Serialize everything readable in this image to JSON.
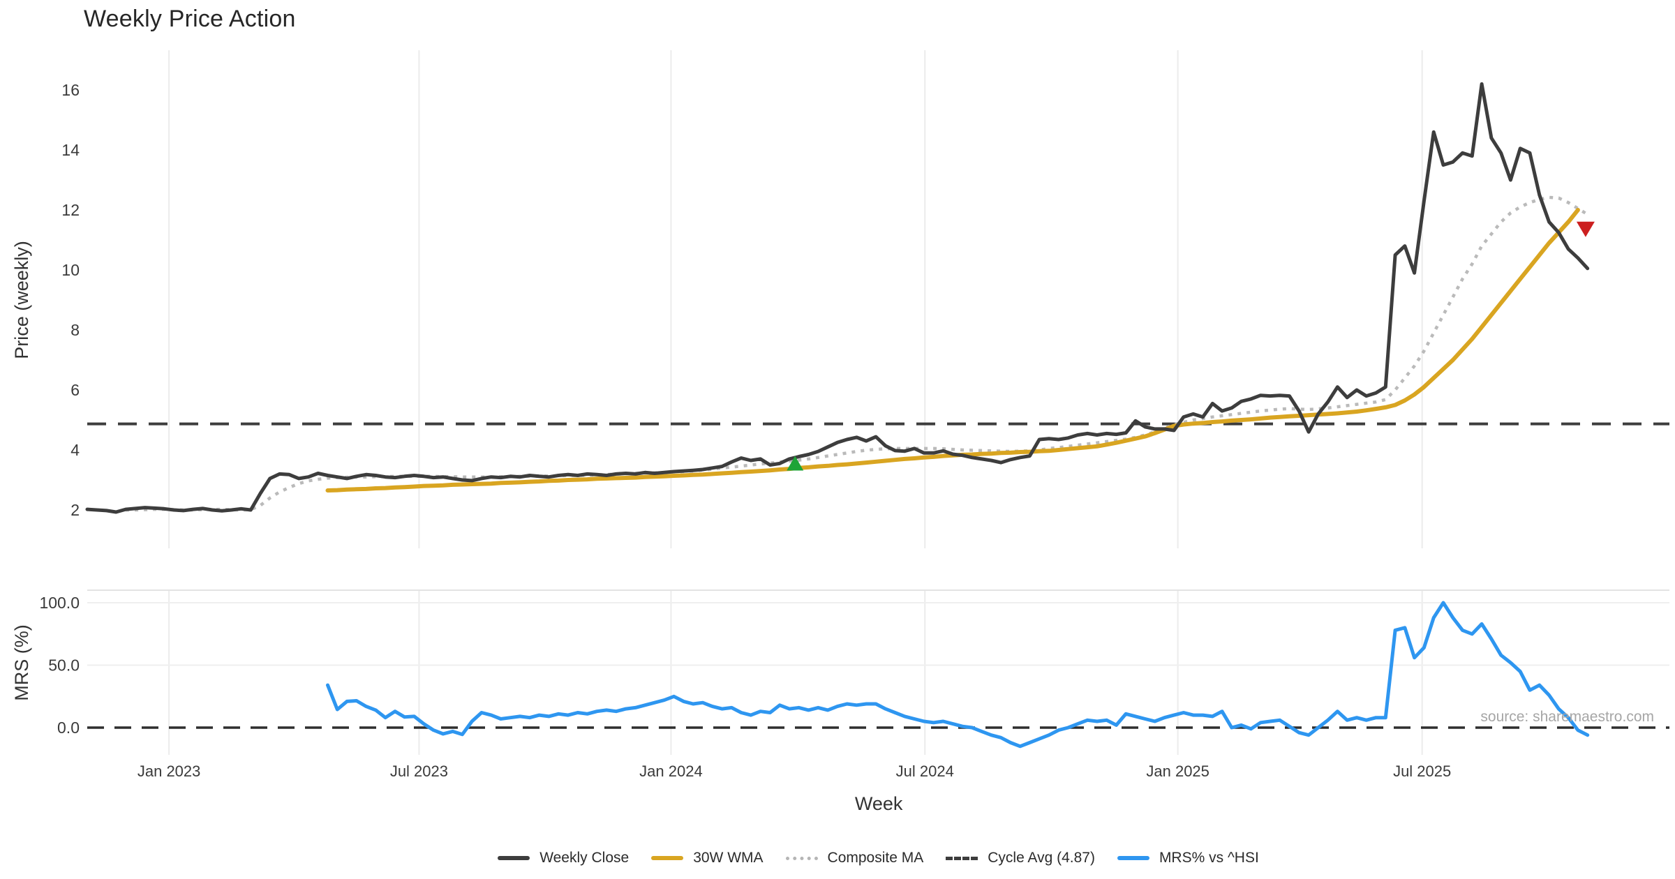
{
  "title": "Weekly Price Action",
  "source_text": "source: sharemaestro.com",
  "colors": {
    "weekly_close": "#3d3d3d",
    "wma_30w": "#d9a521",
    "composite_ma": "#bababa",
    "cycle_avg": "#3d3d3d",
    "mrs_line": "#2e96f0",
    "buy_marker": "#1ea437",
    "sell_marker": "#cc1f1f",
    "gridline": "#ececec",
    "watermark": "#a6a6a6"
  },
  "chart_data": {
    "type": "line",
    "title": "Weekly Price Action",
    "x_axis": {
      "label": "Week",
      "ticks": [
        {
          "label": "Jan 2023",
          "week": 8.5
        },
        {
          "label": "Jul 2023",
          "week": 34.5
        },
        {
          "label": "Jan 2024",
          "week": 60.7
        },
        {
          "label": "Jul 2024",
          "week": 87.1
        },
        {
          "label": "Jan 2025",
          "week": 113.4
        },
        {
          "label": "Jul 2025",
          "week": 138.8
        }
      ],
      "start_week_date": "Nov 2022",
      "total_weeks": 157
    },
    "panels": [
      {
        "id": "price",
        "ylabel": "Price (weekly)",
        "ylim": [
          1.2,
          16.8
        ],
        "yticks": [
          2,
          4,
          6,
          8,
          10,
          12,
          14,
          16
        ],
        "grid": "vertical-only",
        "series": [
          {
            "name": "Weekly Close",
            "style": "solid",
            "color": "#3d3d3d",
            "start_week": 0,
            "values": [
              2.02,
              2.0,
              1.98,
              1.93,
              2.02,
              2.05,
              2.08,
              2.06,
              2.04,
              2.0,
              1.98,
              2.02,
              2.05,
              2.0,
              1.97,
              2.0,
              2.04,
              2.0,
              2.55,
              3.05,
              3.2,
              3.18,
              3.05,
              3.1,
              3.22,
              3.15,
              3.1,
              3.05,
              3.12,
              3.18,
              3.15,
              3.1,
              3.08,
              3.12,
              3.15,
              3.12,
              3.08,
              3.1,
              3.05,
              3.0,
              2.98,
              3.05,
              3.1,
              3.08,
              3.12,
              3.1,
              3.15,
              3.12,
              3.1,
              3.15,
              3.18,
              3.15,
              3.2,
              3.18,
              3.15,
              3.2,
              3.22,
              3.2,
              3.25,
              3.22,
              3.25,
              3.28,
              3.3,
              3.32,
              3.35,
              3.4,
              3.45,
              3.6,
              3.73,
              3.65,
              3.7,
              3.5,
              3.55,
              3.7,
              3.78,
              3.85,
              3.95,
              4.1,
              4.25,
              4.35,
              4.42,
              4.3,
              4.44,
              4.14,
              3.98,
              3.96,
              4.05,
              3.9,
              3.9,
              3.97,
              3.86,
              3.82,
              3.75,
              3.7,
              3.65,
              3.58,
              3.68,
              3.75,
              3.8,
              4.35,
              4.38,
              4.35,
              4.4,
              4.5,
              4.55,
              4.5,
              4.55,
              4.52,
              4.57,
              4.97,
              4.77,
              4.7,
              4.7,
              4.65,
              5.1,
              5.2,
              5.1,
              5.55,
              5.3,
              5.4,
              5.62,
              5.7,
              5.82,
              5.8,
              5.82,
              5.8,
              5.3,
              4.6,
              5.2,
              5.6,
              6.1,
              5.75,
              6.0,
              5.8,
              5.9,
              6.1,
              10.5,
              10.8,
              9.9,
              12.3,
              14.6,
              13.5,
              13.6,
              13.9,
              13.8,
              16.2,
              14.4,
              13.9,
              13.0,
              14.05,
              13.9,
              12.5,
              11.6,
              11.25,
              10.7,
              10.4,
              10.05
            ]
          },
          {
            "name": "30W WMA",
            "style": "solid",
            "color": "#d9a521",
            "start_week": 25,
            "values": [
              2.65,
              2.66,
              2.68,
              2.69,
              2.7,
              2.72,
              2.73,
              2.75,
              2.76,
              2.78,
              2.8,
              2.81,
              2.82,
              2.84,
              2.85,
              2.86,
              2.87,
              2.88,
              2.9,
              2.91,
              2.92,
              2.94,
              2.95,
              2.97,
              2.98,
              3.0,
              3.01,
              3.02,
              3.04,
              3.05,
              3.06,
              3.07,
              3.08,
              3.1,
              3.11,
              3.12,
              3.14,
              3.15,
              3.17,
              3.18,
              3.2,
              3.22,
              3.24,
              3.26,
              3.28,
              3.3,
              3.32,
              3.35,
              3.37,
              3.4,
              3.42,
              3.45,
              3.47,
              3.5,
              3.52,
              3.55,
              3.58,
              3.61,
              3.64,
              3.67,
              3.7,
              3.72,
              3.75,
              3.77,
              3.8,
              3.82,
              3.84,
              3.85,
              3.87,
              3.88,
              3.9,
              3.91,
              3.93,
              3.94,
              3.96,
              3.97,
              4.0,
              4.03,
              4.06,
              4.09,
              4.12,
              4.18,
              4.24,
              4.31,
              4.38,
              4.45,
              4.56,
              4.68,
              4.8,
              4.85,
              4.88,
              4.9,
              4.93,
              4.95,
              4.98,
              5.0,
              5.02,
              5.05,
              5.08,
              5.1,
              5.12,
              5.14,
              5.16,
              5.18,
              5.2,
              5.22,
              5.25,
              5.28,
              5.32,
              5.37,
              5.42,
              5.5,
              5.65,
              5.85,
              6.1,
              6.4,
              6.7,
              7.0,
              7.35,
              7.7,
              8.1,
              8.5,
              8.9,
              9.3,
              9.7,
              10.1,
              10.5,
              10.9,
              11.25,
              11.6,
              12.0
            ]
          },
          {
            "name": "Composite MA",
            "style": "dotted",
            "color": "#bababa",
            "start_week": 4,
            "values": [
              2.0,
              2.0,
              2.01,
              2.02,
              2.02,
              2.01,
              2.0,
              2.0,
              2.01,
              2.02,
              2.02,
              2.01,
              2.0,
              2.01,
              2.15,
              2.4,
              2.6,
              2.75,
              2.88,
              2.97,
              3.02,
              3.06,
              3.08,
              3.09,
              3.1,
              3.1,
              3.11,
              3.11,
              3.12,
              3.12,
              3.12,
              3.12,
              3.12,
              3.11,
              3.11,
              3.1,
              3.1,
              3.1,
              3.1,
              3.11,
              3.11,
              3.12,
              3.12,
              3.13,
              3.13,
              3.14,
              3.15,
              3.15,
              3.16,
              3.17,
              3.18,
              3.2,
              3.21,
              3.22,
              3.23,
              3.24,
              3.25,
              3.27,
              3.28,
              3.3,
              3.33,
              3.36,
              3.4,
              3.43,
              3.46,
              3.5,
              3.53,
              3.56,
              3.6,
              3.63,
              3.66,
              3.7,
              3.75,
              3.8,
              3.85,
              3.9,
              3.95,
              3.99,
              4.02,
              4.04,
              4.05,
              4.05,
              4.05,
              4.05,
              4.05,
              4.04,
              4.02,
              4.0,
              3.99,
              3.98,
              3.97,
              3.96,
              3.95,
              3.96,
              3.97,
              4.0,
              4.05,
              4.08,
              4.12,
              4.16,
              4.2,
              4.24,
              4.28,
              4.32,
              4.36,
              4.42,
              4.5,
              4.6,
              4.72,
              4.85,
              4.92,
              5.0,
              5.05,
              5.1,
              5.14,
              5.18,
              5.22,
              5.26,
              5.3,
              5.33,
              5.36,
              5.38,
              5.36,
              5.35,
              5.37,
              5.4,
              5.44,
              5.48,
              5.52,
              5.56,
              5.6,
              5.68,
              6.0,
              6.4,
              6.8,
              7.3,
              7.9,
              8.5,
              9.1,
              9.7,
              10.2,
              10.8,
              11.2,
              11.6,
              11.9,
              12.1,
              12.25,
              12.35,
              12.42,
              12.4,
              12.25,
              12.05,
              11.85
            ]
          },
          {
            "name": "Cycle Avg (4.87)",
            "style": "dashed",
            "color": "#3d3d3d",
            "constant_value": 4.87
          }
        ],
        "markers": [
          {
            "name": "buy-signal",
            "shape": "triangle-up",
            "color": "#1ea437",
            "week": 73.6,
            "price": 3.5
          },
          {
            "name": "sell-signal",
            "shape": "triangle-down",
            "color": "#cc1f1f",
            "week": 155.8,
            "price": 11.4
          }
        ]
      },
      {
        "id": "mrs",
        "ylabel": "MRS (%)",
        "ylim": [
          -22,
          110
        ],
        "yticks": [
          {
            "label": "100.0",
            "value": 100
          },
          {
            "label": "50.0",
            "value": 50
          },
          {
            "label": "0.0",
            "value": 0
          }
        ],
        "zero_line": {
          "style": "dashed",
          "color": "#2e2e2e",
          "value": 0
        },
        "series": [
          {
            "name": "MRS% vs ^HSI",
            "style": "solid",
            "color": "#2e96f0",
            "start_week": 25,
            "values": [
              34,
              14.5,
              21,
              21.5,
              17,
              14,
              8,
              13,
              8.5,
              9,
              3,
              -2,
              -5,
              -3,
              -5.5,
              5,
              12,
              10,
              7,
              8,
              9,
              8,
              10,
              9,
              11,
              10,
              12,
              11,
              13,
              14,
              13,
              15,
              16,
              18,
              20,
              22,
              25,
              21,
              19,
              20,
              17,
              15,
              16,
              12,
              10,
              13,
              12,
              18,
              15,
              16,
              14,
              16,
              14,
              17,
              19,
              18,
              19,
              19,
              15,
              12,
              9,
              7,
              5,
              4,
              5,
              3,
              1,
              0,
              -3,
              -6,
              -8,
              -12,
              -15,
              -12,
              -9,
              -6,
              -2,
              0,
              3,
              6,
              5,
              6,
              2,
              11,
              9,
              7,
              5,
              8,
              10,
              12,
              10,
              10,
              9,
              13,
              0,
              2,
              -1,
              4,
              5,
              6,
              1,
              -4,
              -6,
              0,
              6,
              13,
              6,
              8,
              6,
              8,
              8,
              78,
              80,
              56,
              64,
              88,
              100,
              88,
              78,
              75,
              83,
              71,
              58,
              52,
              45,
              30,
              34,
              26,
              15,
              8,
              -2,
              -6
            ]
          }
        ]
      }
    ],
    "legend": [
      {
        "label": "Weekly Close",
        "type": "solid",
        "color": "#3d3d3d"
      },
      {
        "label": "30W WMA",
        "type": "solid",
        "color": "#d9a521"
      },
      {
        "label": "Composite MA",
        "type": "dotted",
        "color": "#b5b5b5"
      },
      {
        "label": "Cycle Avg (4.87)",
        "type": "dashed",
        "color": "#3d3d3d"
      },
      {
        "label": "MRS% vs ^HSI",
        "type": "solid",
        "color": "#2e96f0"
      }
    ]
  }
}
